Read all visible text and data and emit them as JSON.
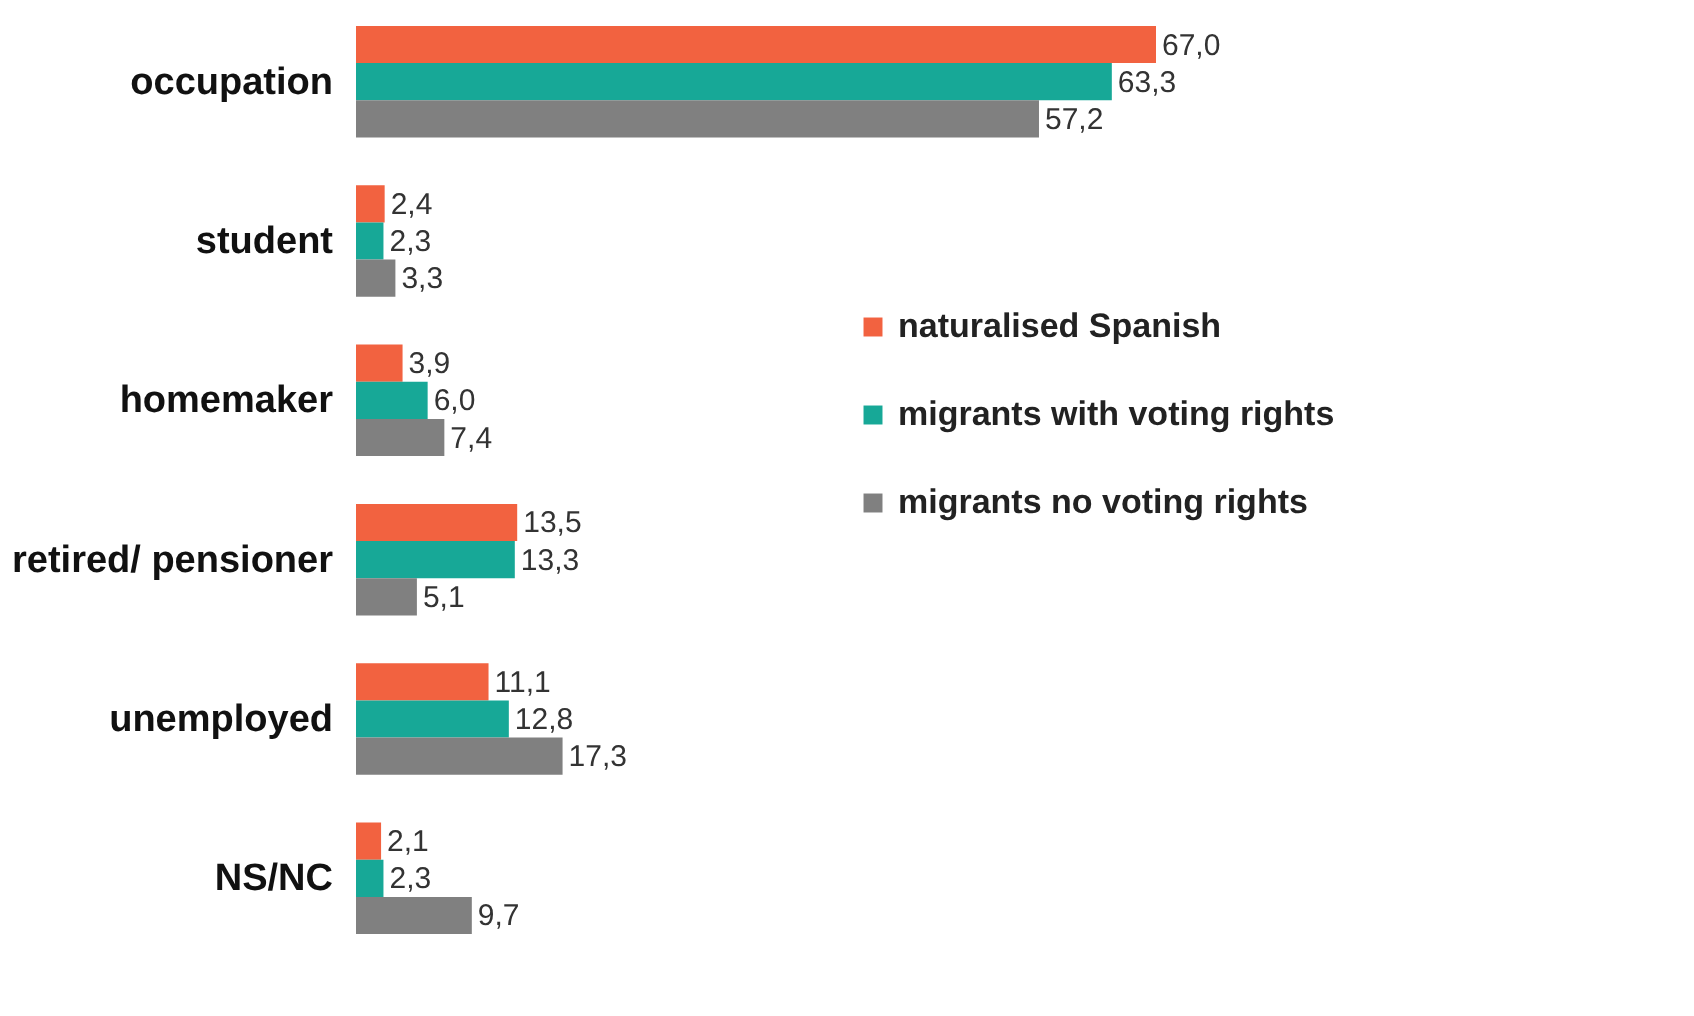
{
  "chart_data": {
    "type": "bar",
    "orientation": "horizontal",
    "categories": [
      "occupation",
      "student",
      "homemaker",
      "retired/ pensioner",
      "unemployed",
      "NS/NC"
    ],
    "series": [
      {
        "name": "naturalised Spanish",
        "color": "#f26240",
        "values": [
          67.0,
          2.4,
          3.9,
          13.5,
          11.1,
          2.1
        ],
        "value_labels": [
          "67,0",
          "2,4",
          "3,9",
          "13,5",
          "11,1",
          "2,1"
        ]
      },
      {
        "name": "migrants with voting rights",
        "color": "#17a897",
        "values": [
          63.3,
          2.3,
          6.0,
          13.3,
          12.8,
          2.3
        ],
        "value_labels": [
          "63,3",
          "2,3",
          "6,0",
          "13,3",
          "12,8",
          "2,3"
        ]
      },
      {
        "name": "migrants no voting rights",
        "color": "#808080",
        "values": [
          57.2,
          3.3,
          7.4,
          5.1,
          17.3,
          9.7
        ],
        "value_labels": [
          "57,2",
          "3,3",
          "7,4",
          "5,1",
          "17,3",
          "9,7"
        ]
      }
    ],
    "tick_labels": "y",
    "legend": "right"
  }
}
